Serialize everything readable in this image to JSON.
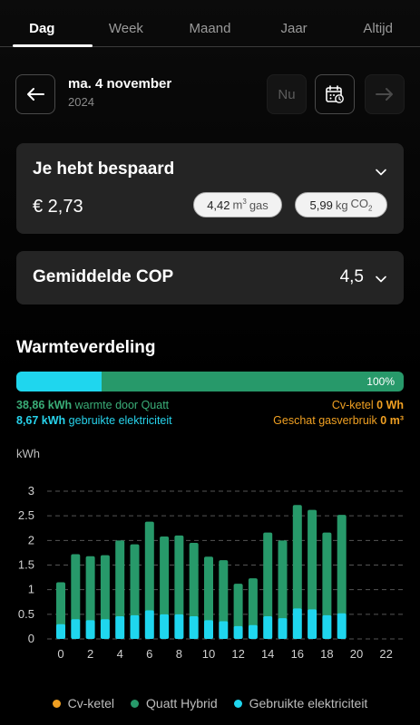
{
  "tabs": [
    {
      "label": "Dag",
      "active": true
    },
    {
      "label": "Week",
      "active": false
    },
    {
      "label": "Maand",
      "active": false
    },
    {
      "label": "Jaar",
      "active": false
    },
    {
      "label": "Altijd",
      "active": false
    }
  ],
  "date": {
    "main": "ma. 4 november",
    "year": "2024",
    "now_label": "Nu"
  },
  "savings": {
    "title": "Je hebt bespaard",
    "amount": "€ 2,73",
    "gas_value": "4,42",
    "gas_unit": "m",
    "gas_sup": "3",
    "gas_label": "gas",
    "co2_value": "5,99",
    "co2_unit": "kg",
    "co2_label": "CO",
    "co2_sub": "2"
  },
  "cop": {
    "title": "Gemiddelde COP",
    "value": "4,5"
  },
  "heat": {
    "title": "Warmteverdeling",
    "bar_percent": "100%",
    "electric_fraction": 0.22,
    "quatt_value": "38,86 kWh",
    "quatt_label": "warmte door Quatt",
    "elec_value": "8,67 kWh",
    "elec_label": "gebruikte elektriciteit",
    "boiler_label": "Cv-ketel",
    "boiler_value": "0 Wh",
    "gas_label": "Geschat gasverbruik",
    "gas_value": "0 m³"
  },
  "colors": {
    "quatt": "#27996a",
    "electric": "#1fd6ee",
    "boiler": "#f0a022"
  },
  "chart_data": {
    "type": "bar",
    "ylabel": "kWh",
    "ylim": [
      0,
      3
    ],
    "yticks": [
      "0",
      "0.5",
      "1",
      "1.5",
      "2",
      "2.5",
      "3"
    ],
    "xticks": [
      "0",
      "2",
      "4",
      "6",
      "8",
      "10",
      "12",
      "14",
      "16",
      "18",
      "20",
      "22"
    ],
    "x": [
      0,
      1,
      2,
      3,
      4,
      5,
      6,
      7,
      8,
      9,
      10,
      11,
      12,
      13,
      14,
      15,
      16,
      17,
      18,
      19,
      20,
      21,
      22,
      23
    ],
    "series": [
      {
        "name": "Quatt Hybrid",
        "values": [
          1.15,
          1.72,
          1.68,
          1.7,
          2.0,
          1.92,
          2.38,
          2.08,
          2.1,
          1.95,
          1.67,
          1.6,
          1.12,
          1.23,
          2.16,
          2.0,
          2.72,
          2.62,
          2.16,
          2.52,
          null,
          null,
          null,
          null
        ]
      },
      {
        "name": "Gebruikte elektriciteit",
        "values": [
          0.3,
          0.4,
          0.38,
          0.4,
          0.46,
          0.48,
          0.58,
          0.5,
          0.5,
          0.46,
          0.38,
          0.36,
          0.26,
          0.28,
          0.46,
          0.42,
          0.62,
          0.6,
          0.48,
          0.52,
          null,
          null,
          null,
          null
        ]
      },
      {
        "name": "Cv-ketel",
        "values": [
          0,
          0,
          0,
          0,
          0,
          0,
          0,
          0,
          0,
          0,
          0,
          0,
          0,
          0,
          0,
          0,
          0,
          0,
          0,
          0,
          null,
          null,
          null,
          null
        ]
      }
    ],
    "legend": [
      "Cv-ketel",
      "Quatt Hybrid",
      "Gebruikte elektriciteit"
    ],
    "grid": true
  }
}
